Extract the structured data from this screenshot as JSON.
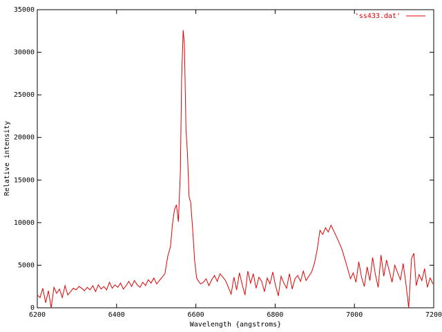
{
  "chart_data": {
    "type": "line",
    "xlabel": "Wavelength {angstroms}",
    "ylabel": "Relative intensity",
    "xlim": [
      6200,
      7200
    ],
    "ylim": [
      0,
      35000
    ],
    "x_ticks": [
      6200,
      6400,
      6600,
      6800,
      7000,
      7200
    ],
    "y_ticks": [
      0,
      5000,
      10000,
      15000,
      20000,
      25000,
      30000,
      35000
    ],
    "grid": false,
    "legend_position": "top-right",
    "series": [
      {
        "name": "'ss433.dat'",
        "color": "#e00000",
        "x": [
          6200,
          6207,
          6214,
          6221,
          6228,
          6235,
          6242,
          6249,
          6256,
          6263,
          6270,
          6277,
          6284,
          6291,
          6298,
          6305,
          6312,
          6319,
          6326,
          6333,
          6340,
          6347,
          6354,
          6361,
          6368,
          6375,
          6382,
          6389,
          6396,
          6403,
          6410,
          6417,
          6424,
          6431,
          6438,
          6445,
          6452,
          6459,
          6466,
          6473,
          6480,
          6487,
          6494,
          6501,
          6508,
          6515,
          6522,
          6529,
          6536,
          6541,
          6546,
          6551,
          6556,
          6561,
          6564,
          6568,
          6571,
          6575,
          6579,
          6583,
          6587,
          6592,
          6597,
          6602,
          6607,
          6612,
          6619,
          6626,
          6633,
          6640,
          6647,
          6654,
          6661,
          6668,
          6675,
          6682,
          6689,
          6696,
          6703,
          6710,
          6717,
          6724,
          6731,
          6738,
          6745,
          6752,
          6759,
          6766,
          6773,
          6780,
          6787,
          6794,
          6801,
          6808,
          6815,
          6822,
          6829,
          6836,
          6843,
          6850,
          6857,
          6864,
          6871,
          6878,
          6885,
          6892,
          6899,
          6906,
          6913,
          6920,
          6927,
          6934,
          6941,
          6948,
          6955,
          6962,
          6969,
          6976,
          6983,
          6990,
          6997,
          7004,
          7011,
          7018,
          7025,
          7032,
          7039,
          7046,
          7053,
          7060,
          7067,
          7074,
          7081,
          7088,
          7095,
          7102,
          7109,
          7116,
          7123,
          7130,
          7137,
          7144,
          7150,
          7156,
          7163,
          7170,
          7177,
          7184,
          7191,
          7198
        ],
        "y": [
          1500,
          1200,
          2300,
          600,
          2000,
          0,
          2400,
          1700,
          2200,
          1200,
          2600,
          1500,
          1900,
          2300,
          2100,
          2500,
          2300,
          2000,
          2400,
          2100,
          2600,
          1900,
          2700,
          2200,
          2500,
          2100,
          3000,
          2300,
          2700,
          2400,
          2900,
          2200,
          2600,
          3100,
          2500,
          3200,
          2700,
          2400,
          3000,
          2600,
          3300,
          2900,
          3500,
          2800,
          3200,
          3600,
          4000,
          6000,
          7200,
          9800,
          11500,
          12100,
          10100,
          16000,
          26500,
          32600,
          31000,
          21000,
          18000,
          13000,
          12400,
          9200,
          5500,
          3500,
          3100,
          2800,
          3000,
          3400,
          2600,
          3300,
          3800,
          3100,
          4000,
          3600,
          3200,
          2400,
          1600,
          3600,
          2100,
          4100,
          2700,
          1500,
          4300,
          2900,
          4000,
          2300,
          3600,
          3100,
          1900,
          3500,
          2800,
          4200,
          2600,
          1400,
          3700,
          2900,
          2300,
          4000,
          2200,
          3400,
          3800,
          3100,
          4300,
          3200,
          3700,
          4200,
          5200,
          6800,
          9100,
          8600,
          9400,
          8900,
          9700,
          9000,
          8300,
          7600,
          6800,
          5700,
          4600,
          3400,
          4100,
          3000,
          5400,
          3600,
          2500,
          4800,
          3200,
          5900,
          3900,
          2400,
          6200,
          3700,
          5600,
          4300,
          3000,
          5000,
          4100,
          3300,
          5200,
          2800,
          0,
          5800,
          6400,
          2600,
          3900,
          3200,
          4600,
          2400,
          3500,
          2800
        ]
      }
    ]
  }
}
